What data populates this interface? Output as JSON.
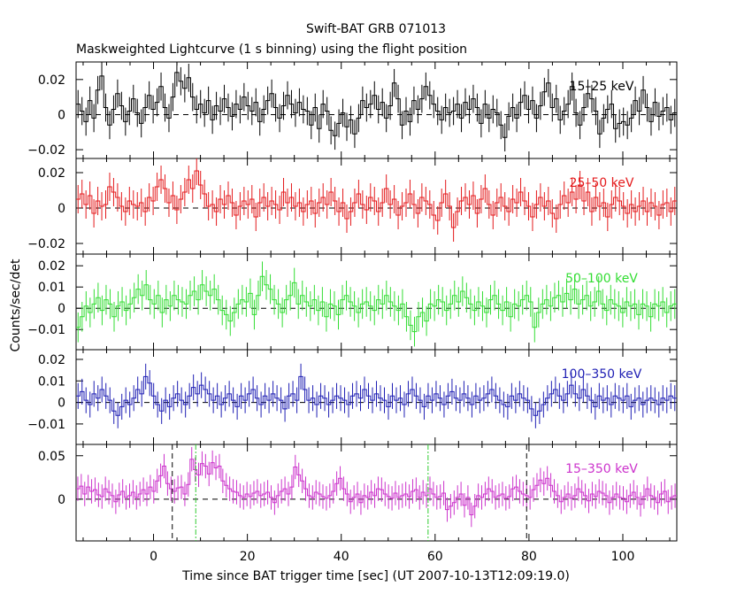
{
  "figure": {
    "title": "Swift-BAT GRB 071013",
    "subtitle": "Maskweighted Lightcurve (1 s binning) using the flight position"
  },
  "chart_data": {
    "type": "line",
    "xlabel": "Time since BAT trigger time [sec] (UT 2007-10-13T12:09:19.0)",
    "ylabel": "Counts/sec/det",
    "xlim": [
      -16.5,
      111.5
    ],
    "x_ticks": [
      0,
      20,
      40,
      60,
      80,
      100
    ],
    "x_tick_labels": [
      "0",
      "20",
      "40",
      "60",
      "80",
      "100"
    ],
    "colors": {
      "15-25": "#000000",
      "25-50": "#e41a1c",
      "50-100": "#33dd33",
      "100-350": "#1f1fb4",
      "15-350": "#cc33cc",
      "vline_black": "#000000",
      "vline_green": "#33cc33"
    },
    "vlines": [
      {
        "x": 4,
        "color": "#000000",
        "panel": 4
      },
      {
        "x": 9,
        "color": "#33cc33",
        "panel": 4
      },
      {
        "x": 58.5,
        "color": "#33cc33",
        "panel": 4
      },
      {
        "x": 79.5,
        "color": "#000000",
        "panel": 4
      }
    ],
    "panels": [
      {
        "name": "15–25 keV",
        "key": "15-25",
        "color": "#000000",
        "ylim": [
          -0.025,
          0.03
        ],
        "yticks": [
          -0.02,
          0,
          0.02
        ],
        "ytick_labels": [
          "−0.02",
          "0",
          "0.02"
        ],
        "err": 0.008,
        "values": [
          0.006,
          0.002,
          -0.004,
          0.008,
          -0.002,
          0.014,
          0.022,
          0.004,
          -0.006,
          0.003,
          0.012,
          0.005,
          -0.004,
          0.002,
          0.009,
          0.001,
          -0.005,
          0.004,
          0.011,
          0.003,
          0.007,
          0.016,
          0.004,
          -0.002,
          0.01,
          0.024,
          0.019,
          0.015,
          0.021,
          0.01,
          0.003,
          0.006,
          0.001,
          0.008,
          -0.003,
          0.005,
          0.002,
          0.009,
          0.004,
          -0.001,
          0.006,
          0.003,
          0.01,
          0.005,
          0.002,
          0.007,
          -0.004,
          0.003,
          0.008,
          0.012,
          0.004,
          -0.002,
          0.005,
          0.011,
          0.006,
          0.001,
          0.007,
          0.003,
          0.002,
          -0.006,
          0.004,
          -0.008,
          0.006,
          0.002,
          -0.009,
          -0.012,
          -0.005,
          0.001,
          -0.007,
          -0.003,
          -0.011,
          -0.002,
          0.008,
          0.004,
          0.006,
          0.011,
          0.003,
          0.007,
          -0.002,
          0.005,
          0.018,
          0.009,
          -0.006,
          0.002,
          -0.004,
          0.008,
          0.003,
          0.009,
          0.016,
          0.011,
          0.006,
          0.002,
          -0.003,
          0.004,
          0.001,
          0.002,
          0.006,
          -0.002,
          0.007,
          0.003,
          0.009,
          0.004,
          -0.005,
          0.006,
          -0.002,
          0.003,
          0.001,
          -0.006,
          -0.013,
          -0.001,
          0.004,
          -0.002,
          0.007,
          0.011,
          0.003,
          0.008,
          -0.002,
          0.005,
          0.013,
          0.018,
          0.004,
          0.009,
          -0.003,
          0.002,
          0.006,
          0.016,
          0.001,
          -0.006,
          0.004,
          0.012,
          0.009,
          0.002,
          -0.011,
          -0.002,
          0.003,
          0.006,
          -0.008,
          -0.005,
          -0.004,
          -0.006,
          -0.002,
          0.008,
          0.002,
          0.014,
          0.004,
          -0.004,
          0.007,
          -0.001,
          0.002,
          0.004,
          -0.003,
          0.001
        ]
      },
      {
        "name": "25–50 keV",
        "key": "25-50",
        "color": "#e41a1c",
        "ylim": [
          -0.026,
          0.028
        ],
        "yticks": [
          -0.02,
          0,
          0.02
        ],
        "ytick_labels": [
          "−0.02",
          "0",
          "0.02"
        ],
        "err": 0.008,
        "values": [
          0.005,
          0.008,
          0.002,
          0.007,
          -0.003,
          0.004,
          0.001,
          0.002,
          0.012,
          0.009,
          0.006,
          0.001,
          -0.002,
          0.004,
          0.002,
          0.001,
          0.003,
          -0.002,
          0.006,
          0.004,
          0.012,
          0.016,
          0.011,
          0.003,
          0.007,
          -0.001,
          0.005,
          0.009,
          0.016,
          0.011,
          0.021,
          0.013,
          0.008,
          0.001,
          0.002,
          -0.002,
          0.005,
          0.002,
          0.007,
          0.003,
          -0.004,
          0.001,
          0.004,
          0.002,
          0.005,
          -0.005,
          0.003,
          0.006,
          0.001,
          0.004,
          0.002,
          -0.001,
          0.009,
          0.003,
          0.006,
          0.001,
          0.003,
          -0.002,
          0.002,
          0.004,
          -0.003,
          0.003,
          0.006,
          0.002,
          0.009,
          0.004,
          -0.002,
          0.003,
          -0.006,
          -0.002,
          0.003,
          0.008,
          0.002,
          -0.001,
          0.006,
          0.004,
          -0.002,
          0.003,
          0.011,
          0.002,
          0.005,
          -0.004,
          0.001,
          0.003,
          0.008,
          0.002,
          -0.003,
          0.006,
          0.004,
          0.002,
          -0.004,
          -0.007,
          0.003,
          0.008,
          0.001,
          -0.011,
          -0.002,
          0.004,
          0.006,
          0.002,
          0.007,
          -0.003,
          0.005,
          0.011,
          0.002,
          -0.004,
          0.003,
          0.006,
          0.001,
          -0.002,
          0.005,
          0.003,
          0.009,
          0.004,
          0.001,
          -0.005,
          0.002,
          0.006,
          0.001,
          0.004,
          -0.003,
          -0.006,
          0.002,
          0.007,
          0.003,
          0.009,
          0.005,
          0.013,
          0.004,
          0.009,
          -0.002,
          0.006,
          0.001,
          0.003,
          -0.005,
          0.002,
          0.006,
          0.004,
          0.001,
          -0.003,
          0.002,
          -0.002,
          0.001,
          0.004,
          -0.002,
          0.003,
          0.001,
          -0.004,
          0.002,
          0.003,
          -0.002,
          0.004
        ]
      },
      {
        "name": "50–100 keV",
        "key": "50-100",
        "color": "#33dd33",
        "ylim": [
          -0.0195,
          0.0255
        ],
        "yticks": [
          -0.01,
          0,
          0.01,
          0.02
        ],
        "ytick_labels": [
          "−0.01",
          "0",
          "0.01",
          "0.02"
        ],
        "err": 0.007,
        "values": [
          -0.009,
          -0.004,
          0.001,
          -0.002,
          0.002,
          0.005,
          -0.001,
          0.004,
          0.002,
          -0.004,
          0.001,
          0.003,
          -0.001,
          0.002,
          0.005,
          0.009,
          0.006,
          0.011,
          0.004,
          0.002,
          0.006,
          -0.002,
          0.004,
          0.001,
          0.006,
          0.004,
          0.003,
          0.002,
          0.006,
          0.008,
          0.004,
          0.011,
          0.008,
          0.006,
          0.009,
          0.004,
          -0.001,
          -0.003,
          -0.006,
          -0.002,
          0.002,
          0.004,
          0.003,
          0.007,
          -0.003,
          0.006,
          0.015,
          0.011,
          0.009,
          0.004,
          0.002,
          -0.002,
          0.004,
          0.006,
          0.012,
          0.002,
          0.006,
          0.003,
          0.001,
          0.004,
          -0.001,
          0.003,
          -0.004,
          0.002,
          0.001,
          -0.003,
          0.004,
          0.006,
          0.003,
          0.001,
          -0.002,
          0.002,
          0.003,
          0.001,
          -0.001,
          0.004,
          0.002,
          0.006,
          0.003,
          0.001,
          -0.001,
          0.002,
          -0.004,
          -0.008,
          -0.011,
          -0.004,
          -0.002,
          -0.006,
          0.002,
          0.001,
          0.004,
          0.003,
          -0.001,
          0.002,
          0.006,
          0.003,
          0.008,
          0.005,
          0.002,
          -0.001,
          0.003,
          0.001,
          -0.002,
          0.004,
          0.006,
          0.002,
          -0.001,
          0.003,
          -0.004,
          0.002,
          0.001,
          0.004,
          0.006,
          0.003,
          -0.009,
          -0.002,
          0.002,
          0.004,
          0.001,
          0.005,
          0.006,
          0.003,
          0.007,
          0.004,
          0.009,
          0.002,
          0.004,
          0.006,
          0.001,
          0.003,
          0.008,
          0.002,
          -0.001,
          0.004,
          0.002,
          0.001,
          -0.002,
          0.003,
          0.001,
          0.002,
          -0.003,
          0.002,
          0.001,
          -0.004,
          0.002,
          0.001,
          0.003,
          -0.002,
          0.001,
          0.002
        ]
      },
      {
        "name": "100–350 keV",
        "key": "100-350",
        "color": "#1f1fb4",
        "ylim": [
          -0.0195,
          0.0245
        ],
        "yticks": [
          -0.01,
          0,
          0.01,
          0.02
        ],
        "ytick_labels": [
          "−0.01",
          "0",
          "0.01",
          "0.02"
        ],
        "err": 0.006,
        "values": [
          0.003,
          0.005,
          0.001,
          -0.001,
          0.004,
          0.002,
          0.006,
          0.003,
          0.001,
          -0.004,
          -0.006,
          -0.002,
          0.001,
          -0.001,
          0.002,
          0.006,
          0.004,
          0.012,
          0.009,
          0.003,
          -0.001,
          -0.004,
          0.001,
          -0.002,
          0.002,
          0.004,
          0.001,
          -0.001,
          0.003,
          0.007,
          0.004,
          0.008,
          0.006,
          0.004,
          0.001,
          0.003,
          -0.001,
          0.002,
          0.004,
          0.001,
          -0.002,
          0.003,
          0.001,
          0.004,
          0.006,
          0.002,
          -0.001,
          0.003,
          0.001,
          0.004,
          0.002,
          0.001,
          -0.003,
          0.003,
          0.004,
          0.001,
          0.012,
          0.006,
          0.001,
          0.002,
          -0.001,
          0.003,
          0.002,
          -0.001,
          0.001,
          0.003,
          0.002,
          0.001,
          -0.001,
          0.003,
          0.004,
          0.002,
          0.006,
          0.003,
          0.001,
          0.004,
          0.002,
          0.001,
          -0.002,
          0.003,
          0.001,
          0.002,
          -0.001,
          0.004,
          0.006,
          0.003,
          0.001,
          -0.002,
          0.003,
          0.001,
          0.004,
          0.002,
          -0.001,
          0.003,
          0.005,
          0.002,
          0.001,
          0.004,
          0.002,
          -0.001,
          0.003,
          0.001,
          0.002,
          0.004,
          0.006,
          0.003,
          0.001,
          -0.001,
          -0.002,
          0.003,
          0.001,
          0.004,
          0.002,
          0.001,
          -0.003,
          -0.006,
          -0.004,
          -0.001,
          0.002,
          0.004,
          0.006,
          0.003,
          0.001,
          0.004,
          0.008,
          0.004,
          0.002,
          0.006,
          0.003,
          0.001,
          -0.002,
          0.003,
          0.001,
          0.002,
          -0.001,
          0.003,
          0.002,
          0.001,
          0.003,
          -0.002,
          0.001,
          0.002,
          -0.001,
          0.001,
          0.002,
          0.001,
          -0.001,
          0.002,
          0.001,
          0.003,
          0.002
        ]
      },
      {
        "name": "15–350 keV",
        "key": "15-350",
        "color": "#cc33cc",
        "ylim": [
          -0.048,
          0.063
        ],
        "yticks": [
          0,
          0.05
        ],
        "ytick_labels": [
          "0",
          "0.05"
        ],
        "err": 0.014,
        "values": [
          0.012,
          0.015,
          0.006,
          0.014,
          0.009,
          0.011,
          0.005,
          0.003,
          0.012,
          0.008,
          0.004,
          -0.003,
          0.005,
          0.009,
          0.002,
          0.004,
          0.008,
          0.002,
          0.006,
          0.011,
          0.006,
          0.014,
          0.009,
          0.021,
          0.027,
          0.038,
          0.018,
          0.012,
          0.009,
          0.013,
          0.014,
          0.006,
          0.017,
          0.046,
          0.034,
          0.028,
          0.041,
          0.038,
          0.029,
          0.042,
          0.036,
          0.038,
          0.021,
          0.016,
          0.012,
          0.009,
          0.008,
          0.004,
          0.002,
          0.006,
          0.003,
          0.007,
          0.009,
          0.004,
          0.006,
          0.008,
          0.002,
          -0.004,
          0.004,
          0.009,
          0.012,
          0.006,
          0.014,
          0.037,
          0.028,
          0.021,
          0.012,
          0.004,
          0.002,
          0.008,
          0.006,
          0.003,
          0.001,
          0.004,
          0.009,
          0.018,
          0.024,
          0.012,
          0.006,
          -0.003,
          0.002,
          0.006,
          -0.004,
          0.004,
          0.002,
          0.008,
          0.004,
          0.012,
          0.011,
          0.006,
          0.003,
          0.001,
          0.007,
          0.002,
          0.004,
          0.006,
          0.003,
          0.009,
          0.011,
          0.002,
          0.008,
          0.004,
          0.012,
          0.006,
          0.002,
          0.003,
          0.007,
          -0.012,
          -0.008,
          -0.004,
          0.002,
          0.006,
          -0.007,
          0.002,
          -0.018,
          -0.008,
          0.004,
          0.002,
          0.006,
          0.012,
          0.009,
          0.002,
          0.004,
          0.006,
          0.001,
          0.003,
          0.012,
          0.014,
          0.009,
          0.006,
          0.004,
          0.002,
          0.011,
          0.016,
          0.022,
          0.018,
          0.024,
          0.016,
          0.009,
          0.004,
          -0.003,
          0.002,
          0.006,
          0.001,
          0.004,
          0.012,
          0.008,
          0.004,
          -0.002,
          0.006,
          0.003,
          0.009,
          0.007,
          0.004,
          -0.004,
          0.002,
          0.006,
          0.002,
          0.001,
          -0.003,
          0.004,
          0.008,
          0.002,
          -0.006,
          0.003,
          0.012,
          0.004,
          0.002,
          -0.004,
          0.006,
          0.009,
          -0.003,
          0.002,
          0.004
        ]
      }
    ]
  }
}
